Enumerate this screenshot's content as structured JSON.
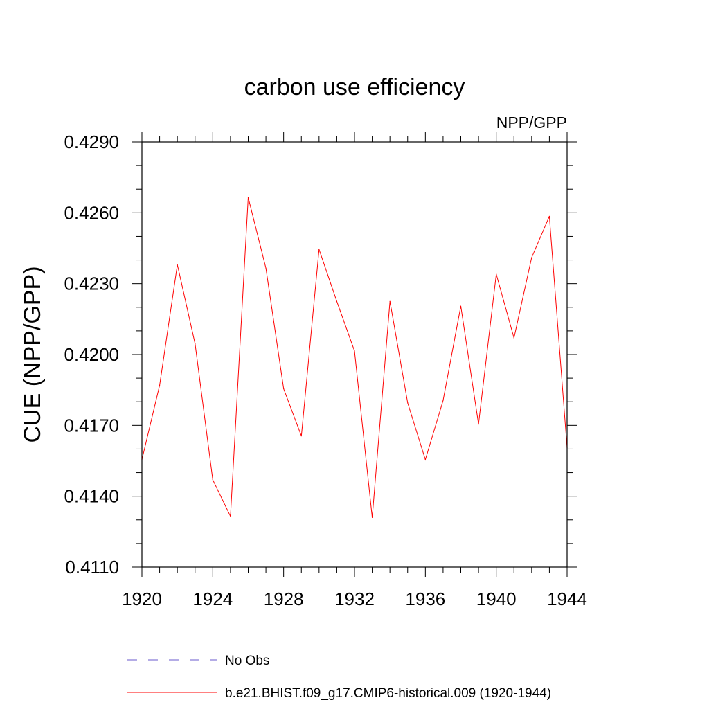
{
  "chart_data": {
    "type": "line",
    "title": "carbon use efficiency",
    "subtitle": "NPP/GPP",
    "xlabel": "",
    "ylabel": "CUE  (NPP/GPP)",
    "xlim": [
      1920,
      1944
    ],
    "ylim": [
      0.411,
      0.429
    ],
    "x_major_ticks": [
      1920,
      1924,
      1928,
      1932,
      1936,
      1940,
      1944
    ],
    "x_minor_step": 1,
    "y_major_ticks": [
      0.411,
      0.414,
      0.417,
      0.42,
      0.423,
      0.426,
      0.429
    ],
    "y_tick_labels": [
      "0.4110",
      "0.4140",
      "0.4170",
      "0.4200",
      "0.4230",
      "0.4260",
      "0.4290"
    ],
    "y_minor_step": 0.001,
    "grid": false,
    "legend_position": "bottom",
    "x": [
      1920,
      1921,
      1922,
      1923,
      1924,
      1925,
      1926,
      1927,
      1928,
      1929,
      1930,
      1931,
      1932,
      1933,
      1934,
      1935,
      1936,
      1937,
      1938,
      1939,
      1940,
      1941,
      1942,
      1943,
      1944
    ],
    "series": [
      {
        "name": "b.e21.BHIST.f09_g17.CMIP6-historical.009 (1920-1944)",
        "color": "#ff0000",
        "dash": "solid",
        "values": [
          0.41555,
          0.4187,
          0.4238,
          0.42045,
          0.4147,
          0.41315,
          0.42665,
          0.42365,
          0.41855,
          0.41655,
          0.42445,
          0.42225,
          0.42015,
          0.4131,
          0.42225,
          0.41795,
          0.41555,
          0.41805,
          0.42205,
          0.41705,
          0.4234,
          0.4207,
          0.4241,
          0.42585,
          0.41605
        ]
      }
    ],
    "legend": [
      {
        "label": "No Obs",
        "color": "#6a5acd",
        "dash": "dashed"
      },
      {
        "label": "b.e21.BHIST.f09_g17.CMIP6-historical.009 (1920-1944)",
        "color": "#ff0000",
        "dash": "solid"
      }
    ]
  }
}
